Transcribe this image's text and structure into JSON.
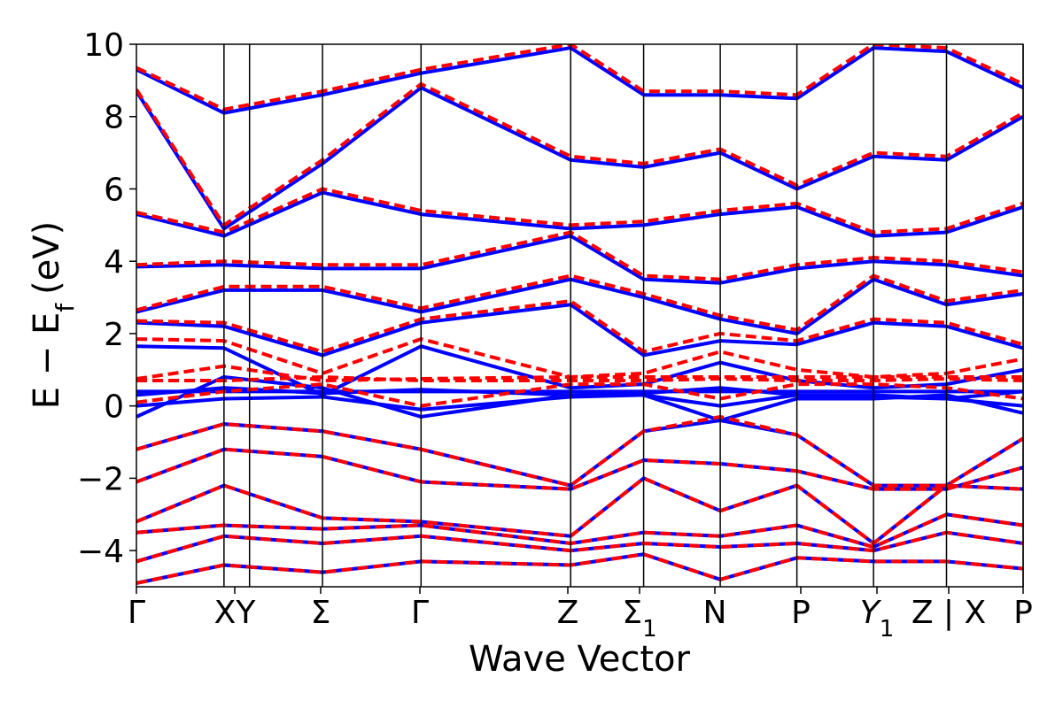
{
  "chart_data": {
    "type": "line",
    "title": "",
    "xlabel": "Wave Vector",
    "ylabel": "E − E_f (eV)",
    "ylabel_main": "E − E",
    "ylabel_sub": "f",
    "ylabel_unit": "(eV)",
    "ylim": [
      -5,
      10
    ],
    "yticks": [
      -4,
      -2,
      0,
      2,
      4,
      6,
      8,
      10
    ],
    "ytick_labels": [
      "−4",
      "−2",
      "0",
      "2",
      "4",
      "6",
      "8",
      "10"
    ],
    "xlim": [
      0,
      10.3
    ],
    "kpoints": [
      {
        "label": "Γ",
        "x": 0.0
      },
      {
        "label": "XY",
        "x": 1.2
      },
      {
        "label": "Σ",
        "x": 2.55
      },
      {
        "label": "Γ",
        "x": 3.9
      },
      {
        "label": "Z",
        "x": 5.95
      },
      {
        "label": "Σ",
        "sub": "1",
        "x": 6.95
      },
      {
        "label": "N",
        "x": 8.0
      },
      {
        "label": "P",
        "x": 9.05
      },
      {
        "label": "Y",
        "sub": "1",
        "x": 10.1
      },
      {
        "label": "Z | X",
        "x": 11.1
      },
      {
        "label": "P",
        "x": 12.15
      }
    ],
    "separators": [
      1.2,
      1.55,
      2.55,
      3.9,
      5.95,
      6.95,
      8.0,
      9.05,
      10.1,
      11.1,
      12.15
    ],
    "colors": {
      "series_a": "#0000ff",
      "series_b": "#ff0000"
    },
    "series": [
      {
        "style": "solid",
        "color": "#0000ff",
        "bands": [
          {
            "x": [
              0,
              1.2,
              2.55,
              3.9,
              5.95,
              6.95,
              8.0,
              9.05,
              10.1,
              11.1,
              12.15
            ],
            "y": [
              0.4,
              0.4,
              0.4,
              0.4,
              0.4,
              0.4,
              0.4,
              0.4,
              0.4,
              0.4,
              0.4
            ]
          },
          {
            "x": [
              0,
              1.2,
              2.55,
              3.9,
              5.95,
              6.95,
              8.0,
              9.05,
              10.1,
              11.1,
              12.15
            ],
            "y": [
              0.3,
              0.5,
              0.35,
              0.45,
              0.3,
              0.35,
              0.5,
              0.3,
              0.3,
              0.2,
              0.4
            ]
          },
          {
            "x": [
              0,
              1.2,
              2.55,
              3.9,
              5.95,
              6.95,
              8.0,
              9.05,
              10.1,
              11.1,
              12.15
            ],
            "y": [
              0.0,
              0.2,
              0.25,
              -0.1,
              0.25,
              0.3,
              0.0,
              0.3,
              0.25,
              0.2,
              0.0
            ]
          },
          {
            "x": [
              0,
              1.2,
              2.55,
              3.9,
              5.95,
              6.95,
              8.0,
              9.05,
              10.1,
              11.1,
              12.15
            ],
            "y": [
              -0.3,
              0.8,
              0.5,
              -0.3,
              0.3,
              0.3,
              -0.4,
              0.2,
              0.2,
              0.3,
              -0.2
            ]
          },
          {
            "x": [
              0,
              1.2,
              2.55,
              3.9,
              5.95,
              6.95,
              8.0,
              9.05,
              10.1,
              11.1,
              12.15
            ],
            "y": [
              1.65,
              1.6,
              0.3,
              1.65,
              0.5,
              0.6,
              1.2,
              0.7,
              0.5,
              0.6,
              1.0
            ]
          },
          {
            "x": [
              0,
              1.2,
              2.55,
              3.9,
              5.95,
              6.95,
              8.0,
              9.05,
              10.1,
              11.1,
              12.15
            ],
            "y": [
              2.3,
              2.2,
              1.4,
              2.3,
              2.8,
              1.4,
              1.8,
              1.7,
              2.3,
              2.2,
              1.6
            ]
          },
          {
            "x": [
              0,
              1.2,
              2.55,
              3.9,
              5.95,
              6.95,
              8.0,
              9.05,
              10.1,
              11.1,
              12.15
            ],
            "y": [
              2.6,
              3.2,
              3.2,
              2.6,
              3.5,
              3.0,
              2.4,
              2.0,
              3.5,
              2.8,
              3.1
            ]
          },
          {
            "x": [
              0,
              1.2,
              2.55,
              3.9,
              5.95,
              6.95,
              8.0,
              9.05,
              10.1,
              11.1,
              12.15
            ],
            "y": [
              3.85,
              3.9,
              3.8,
              3.8,
              4.7,
              3.5,
              3.4,
              3.8,
              4.0,
              3.9,
              3.6
            ]
          },
          {
            "x": [
              0,
              1.2,
              2.55,
              3.9,
              5.95,
              6.95,
              8.0,
              9.05,
              10.1,
              11.1,
              12.15
            ],
            "y": [
              5.3,
              4.7,
              5.9,
              5.3,
              4.9,
              5.0,
              5.3,
              5.5,
              4.7,
              4.8,
              5.5
            ]
          },
          {
            "x": [
              0,
              1.2,
              2.55,
              3.9,
              5.95,
              6.95,
              8.0,
              9.05,
              10.1,
              11.1,
              12.15
            ],
            "y": [
              8.7,
              4.9,
              6.7,
              8.8,
              6.8,
              6.6,
              7.0,
              6.0,
              6.9,
              6.8,
              8.0
            ]
          },
          {
            "x": [
              0,
              1.2,
              2.55,
              3.9,
              5.95,
              6.95,
              8.0,
              9.05,
              10.1,
              11.1,
              12.15
            ],
            "y": [
              9.3,
              8.1,
              8.6,
              9.2,
              9.9,
              8.6,
              8.6,
              8.5,
              9.9,
              9.8,
              8.8
            ]
          },
          {
            "x": [
              0,
              1.2,
              2.55,
              3.9,
              5.95,
              6.95,
              8.0,
              9.05,
              10.1,
              11.1,
              12.15
            ],
            "y": [
              -1.2,
              -0.5,
              -0.7,
              -1.2,
              -2.2,
              -0.7,
              -0.4,
              -0.8,
              -2.2,
              -2.2,
              -0.9
            ]
          },
          {
            "x": [
              0,
              1.2,
              2.55,
              3.9,
              5.95,
              6.95,
              8.0,
              9.05,
              10.1,
              11.1,
              12.15
            ],
            "y": [
              -2.1,
              -1.2,
              -1.4,
              -2.1,
              -2.3,
              -1.5,
              -1.6,
              -1.8,
              -2.3,
              -2.3,
              -1.7
            ]
          },
          {
            "x": [
              0,
              1.2,
              2.55,
              3.9,
              5.95,
              6.95,
              8.0,
              9.05,
              10.1,
              11.1,
              12.15
            ],
            "y": [
              -3.2,
              -2.2,
              -3.1,
              -3.2,
              -3.6,
              -2.0,
              -2.9,
              -2.2,
              -3.8,
              -2.2,
              -2.3
            ]
          },
          {
            "x": [
              0,
              1.2,
              2.55,
              3.9,
              5.95,
              6.95,
              8.0,
              9.05,
              10.1,
              11.1,
              12.15
            ],
            "y": [
              -3.5,
              -3.3,
              -3.4,
              -3.3,
              -3.8,
              -3.5,
              -3.6,
              -3.3,
              -3.9,
              -3.0,
              -3.3
            ]
          },
          {
            "x": [
              0,
              1.2,
              2.55,
              3.9,
              5.95,
              6.95,
              8.0,
              9.05,
              10.1,
              11.1,
              12.15
            ],
            "y": [
              -4.3,
              -3.6,
              -3.8,
              -3.6,
              -4.0,
              -3.8,
              -3.9,
              -3.8,
              -4.0,
              -3.5,
              -3.8
            ]
          },
          {
            "x": [
              0,
              1.2,
              2.55,
              3.9,
              5.95,
              6.95,
              8.0,
              9.05,
              10.1,
              11.1,
              12.15
            ],
            "y": [
              -4.9,
              -4.4,
              -4.6,
              -4.3,
              -4.4,
              -4.1,
              -4.8,
              -4.2,
              -4.3,
              -4.3,
              -4.5
            ]
          }
        ]
      },
      {
        "style": "dashed",
        "color": "#ff0000",
        "bands": [
          {
            "x": [
              0,
              1.2,
              2.55,
              3.9,
              5.95,
              6.95,
              8.0,
              9.05,
              10.1,
              11.1,
              12.15
            ],
            "y": [
              0.75,
              1.1,
              0.7,
              0.75,
              0.8,
              0.8,
              0.8,
              0.8,
              0.8,
              0.8,
              0.8
            ]
          },
          {
            "x": [
              0,
              1.2,
              2.55,
              3.9,
              5.95,
              6.95,
              8.0,
              9.05,
              10.1,
              11.1,
              12.15
            ],
            "y": [
              0.7,
              0.7,
              0.8,
              0.7,
              0.7,
              0.7,
              0.75,
              0.7,
              0.7,
              0.75,
              0.7
            ]
          },
          {
            "x": [
              0,
              1.2,
              2.55,
              3.9,
              5.95,
              6.95,
              8.0,
              9.05,
              10.1,
              11.1,
              12.15
            ],
            "y": [
              0.1,
              0.4,
              0.6,
              0.0,
              0.6,
              0.6,
              0.2,
              0.6,
              0.6,
              0.5,
              0.2
            ]
          },
          {
            "x": [
              0,
              1.2,
              2.55,
              3.9,
              5.95,
              6.95,
              8.0,
              9.05,
              10.1,
              11.1,
              12.15
            ],
            "y": [
              1.85,
              1.8,
              0.9,
              1.85,
              0.8,
              0.9,
              1.5,
              1.0,
              0.8,
              0.9,
              1.3
            ]
          },
          {
            "x": [
              0,
              1.2,
              2.55,
              3.9,
              5.95,
              6.95,
              8.0,
              9.05,
              10.1,
              11.1,
              12.15
            ],
            "y": [
              2.35,
              2.3,
              1.5,
              2.4,
              2.9,
              1.5,
              2.0,
              1.8,
              2.4,
              2.3,
              1.7
            ]
          },
          {
            "x": [
              0,
              1.2,
              2.55,
              3.9,
              5.95,
              6.95,
              8.0,
              9.05,
              10.1,
              11.1,
              12.15
            ],
            "y": [
              2.65,
              3.3,
              3.3,
              2.7,
              3.6,
              3.1,
              2.5,
              2.1,
              3.6,
              2.9,
              3.2
            ]
          },
          {
            "x": [
              0,
              1.2,
              2.55,
              3.9,
              5.95,
              6.95,
              8.0,
              9.05,
              10.1,
              11.1,
              12.15
            ],
            "y": [
              3.9,
              4.0,
              3.9,
              3.9,
              4.8,
              3.6,
              3.5,
              3.9,
              4.1,
              4.0,
              3.7
            ]
          },
          {
            "x": [
              0,
              1.2,
              2.55,
              3.9,
              5.95,
              6.95,
              8.0,
              9.05,
              10.1,
              11.1,
              12.15
            ],
            "y": [
              5.35,
              4.8,
              6.0,
              5.4,
              5.0,
              5.1,
              5.4,
              5.6,
              4.8,
              4.9,
              5.6
            ]
          },
          {
            "x": [
              0,
              1.2,
              2.55,
              3.9,
              5.95,
              6.95,
              8.0,
              9.05,
              10.1,
              11.1,
              12.15
            ],
            "y": [
              8.75,
              5.0,
              6.8,
              8.9,
              6.9,
              6.7,
              7.1,
              6.1,
              7.0,
              6.9,
              8.1
            ]
          },
          {
            "x": [
              0,
              1.2,
              2.55,
              3.9,
              5.95,
              6.95,
              8.0,
              9.05,
              10.1,
              11.1,
              12.15
            ],
            "y": [
              9.35,
              8.2,
              8.7,
              9.3,
              10.0,
              8.7,
              8.7,
              8.6,
              10.0,
              9.9,
              8.9
            ]
          },
          {
            "x": [
              0,
              1.2,
              2.55,
              3.9,
              5.95,
              6.95,
              8.0,
              9.05,
              10.1,
              11.1,
              12.15
            ],
            "y": [
              -1.2,
              -0.5,
              -0.7,
              -1.2,
              -2.2,
              -0.7,
              -0.3,
              -0.8,
              -2.2,
              -2.2,
              -0.9
            ]
          },
          {
            "x": [
              0,
              1.2,
              2.55,
              3.9,
              5.95,
              6.95,
              8.0,
              9.05,
              10.1,
              11.1,
              12.15
            ],
            "y": [
              -2.1,
              -1.2,
              -1.4,
              -2.1,
              -2.3,
              -1.5,
              -1.6,
              -1.8,
              -2.3,
              -2.3,
              -1.7
            ]
          },
          {
            "x": [
              0,
              1.2,
              2.55,
              3.9,
              5.95,
              6.95,
              8.0,
              9.05,
              10.1,
              11.1,
              12.15
            ],
            "y": [
              -3.2,
              -2.2,
              -3.1,
              -3.2,
              -3.6,
              -2.0,
              -2.9,
              -2.2,
              -3.8,
              -2.2,
              -2.3
            ]
          },
          {
            "x": [
              0,
              1.2,
              2.55,
              3.9,
              5.95,
              6.95,
              8.0,
              9.05,
              10.1,
              11.1,
              12.15
            ],
            "y": [
              -3.5,
              -3.3,
              -3.4,
              -3.3,
              -3.8,
              -3.5,
              -3.6,
              -3.3,
              -3.9,
              -3.0,
              -3.3
            ]
          },
          {
            "x": [
              0,
              1.2,
              2.55,
              3.9,
              5.95,
              6.95,
              8.0,
              9.05,
              10.1,
              11.1,
              12.15
            ],
            "y": [
              -4.3,
              -3.6,
              -3.8,
              -3.6,
              -4.0,
              -3.8,
              -3.9,
              -3.8,
              -4.0,
              -3.5,
              -3.8
            ]
          },
          {
            "x": [
              0,
              1.2,
              2.55,
              3.9,
              5.95,
              6.95,
              8.0,
              9.05,
              10.1,
              11.1,
              12.15
            ],
            "y": [
              -4.9,
              -4.4,
              -4.6,
              -4.3,
              -4.4,
              -4.1,
              -4.8,
              -4.2,
              -4.3,
              -4.3,
              -4.5
            ]
          }
        ]
      }
    ]
  }
}
